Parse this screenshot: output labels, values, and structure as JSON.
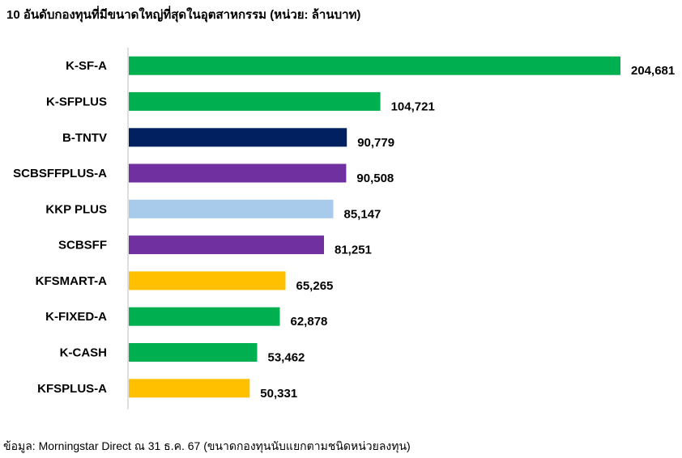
{
  "title": "10 อันดับกองทุนที่มีขนาดใหญ่ที่สุดในอุตสาหกรรม (หน่วย: ล้านบาท)",
  "source": "ข้อมูล: Morningstar Direct ณ 31 ธ.ค. 67 (ขนาดกองทุนนับแยกตามชนิดหน่วยลงทุน)",
  "colors": {
    "green": "#00b050",
    "navy": "#002060",
    "purple": "#7030a0",
    "light_blue": "#a9cbeb",
    "gold": "#ffc000",
    "axis": "#bfbfbf"
  },
  "chart_data": {
    "type": "bar",
    "orientation": "horizontal",
    "title": "10 อันดับกองทุนที่มีขนาดใหญ่ที่สุดในอุตสาหกรรม (หน่วย: ล้านบาท)",
    "xlabel": "",
    "ylabel": "",
    "xlim": [
      0,
      215000
    ],
    "grid": false,
    "categories": [
      "K-SF-A",
      "K-SFPLUS",
      "B-TNTV",
      "SCBSFFPLUS-A",
      "KKP PLUS",
      "SCBSFF",
      "KFSMART-A",
      "K-FIXED-A",
      "K-CASH",
      "KFSPLUS-A"
    ],
    "values": [
      204681,
      104721,
      90779,
      90508,
      85147,
      81251,
      65265,
      62878,
      53462,
      50331
    ],
    "value_labels": [
      "204,681",
      "104,721",
      "90,779",
      "90,508",
      "85,147",
      "81,251",
      "65,265",
      "62,878",
      "53,462",
      "50,331"
    ],
    "bar_colors": [
      "#00b050",
      "#00b050",
      "#002060",
      "#7030a0",
      "#a9cbeb",
      "#7030a0",
      "#ffc000",
      "#00b050",
      "#00b050",
      "#ffc000"
    ]
  }
}
